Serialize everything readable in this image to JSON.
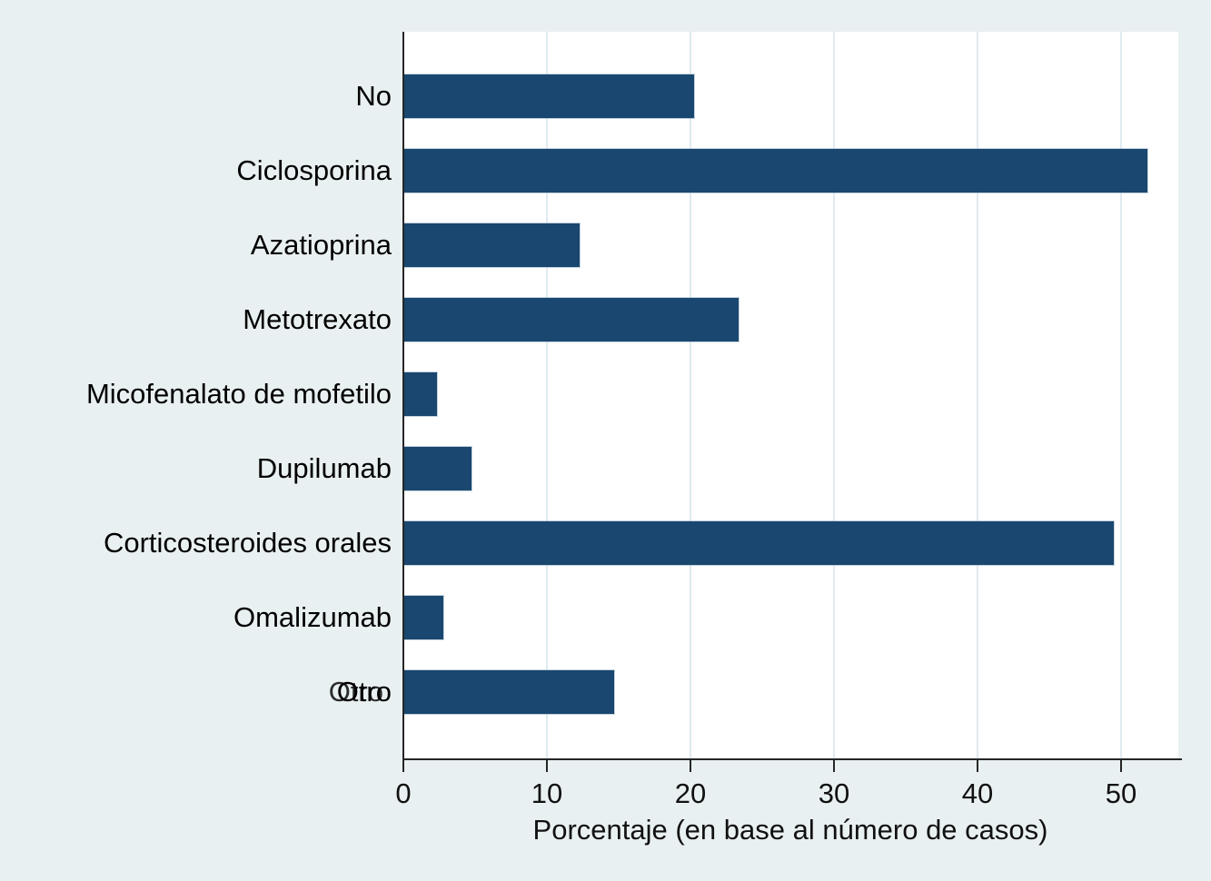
{
  "chart_data": {
    "type": "bar",
    "orientation": "horizontal",
    "title": "",
    "xlabel": "Porcentaje (en base al número de casos)",
    "ylabel": "",
    "categories": [
      "No",
      "Ciclosporina",
      "Azatioprina",
      "Metotrexato",
      "Micofenalato de mofetilo",
      "Dupilumab",
      "Corticosteroides orales",
      "Omalizumab",
      "Otro"
    ],
    "values": [
      20.2,
      51.8,
      12.2,
      23.3,
      2.3,
      4.7,
      49.4,
      2.7,
      14.6
    ],
    "xlim": [
      0,
      54
    ],
    "xticks": [
      0,
      10,
      20,
      30,
      40,
      50
    ],
    "grid": "vertical-light-gridlines-at-xticks",
    "legend": "none",
    "colors": {
      "bar": "#1a476f",
      "background": "#e9f0f2",
      "plot_background": "#ffffff",
      "gridline": "#dfeaf1",
      "axis": "#262626",
      "text": "#000000"
    },
    "render_hints": {
      "double_printed_label_index": 8
    }
  }
}
